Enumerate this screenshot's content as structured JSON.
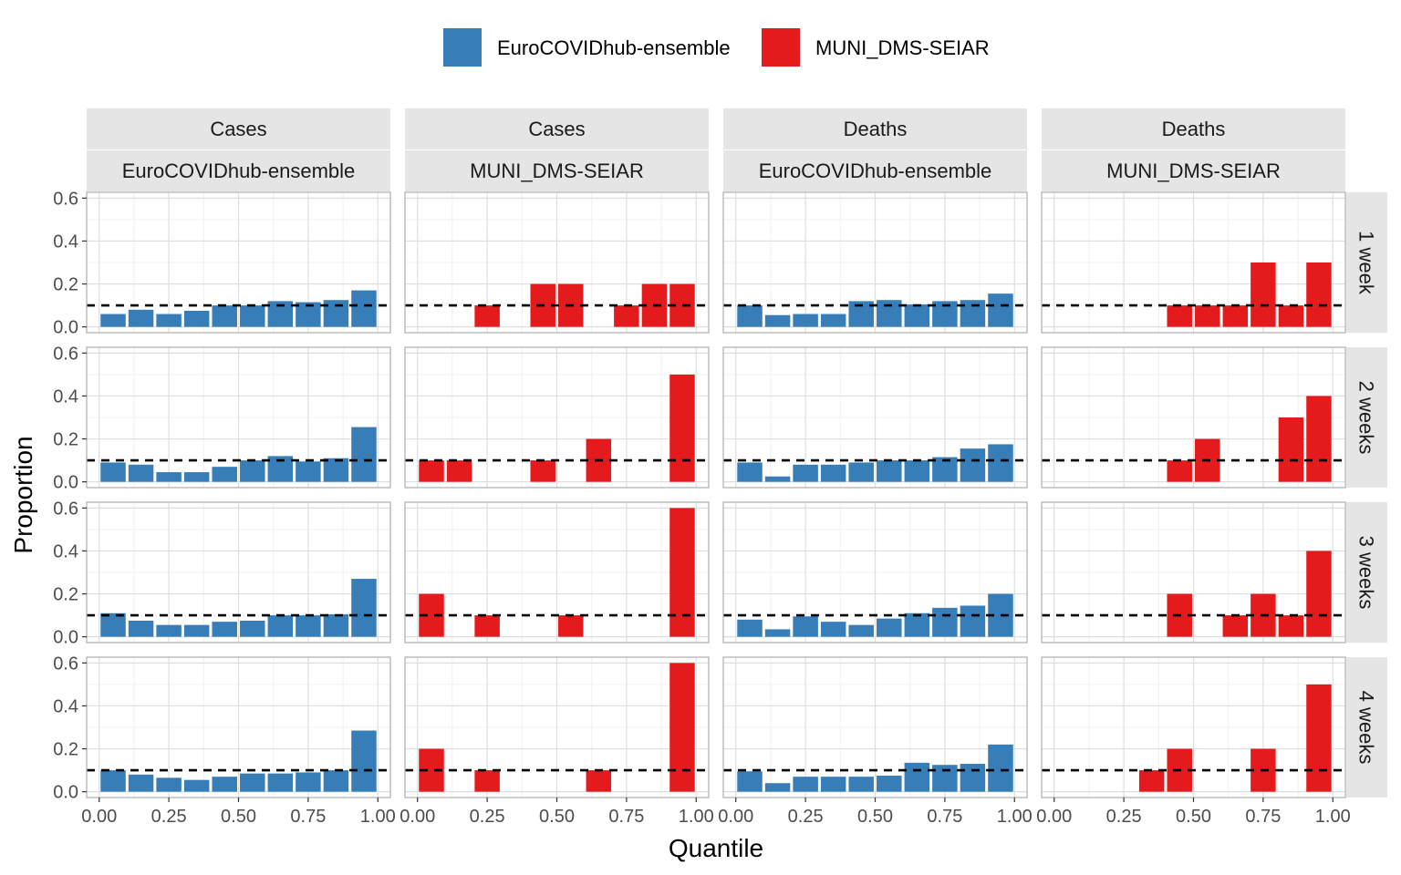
{
  "chart_data": {
    "type": "bar",
    "xlabel": "Quantile",
    "ylabel": "Proportion",
    "xlim": [
      0,
      1
    ],
    "ylim": [
      0,
      0.6
    ],
    "x_ticks": [
      0,
      0.25,
      0.5,
      0.75,
      1.0
    ],
    "x_tick_labels": [
      "0.00",
      "0.25",
      "0.50",
      "0.75",
      "1.00"
    ],
    "y_ticks": [
      0,
      0.2,
      0.4,
      0.6
    ],
    "y_tick_labels": [
      "0.0",
      "0.2",
      "0.4",
      "0.6"
    ],
    "reference_line": 0.1,
    "grid": true,
    "legend_position": "top",
    "bins": [
      0.05,
      0.15,
      0.25,
      0.35,
      0.45,
      0.55,
      0.65,
      0.75,
      0.85,
      0.95
    ],
    "models": [
      {
        "name": "EuroCOVIDhub-ensemble",
        "color": "#377EB8"
      },
      {
        "name": "MUNI_DMS-SEIAR",
        "color": "#E41A1C"
      }
    ],
    "columns": [
      {
        "target": "Cases",
        "model": "EuroCOVIDhub-ensemble"
      },
      {
        "target": "Cases",
        "model": "MUNI_DMS-SEIAR"
      },
      {
        "target": "Deaths",
        "model": "EuroCOVIDhub-ensemble"
      },
      {
        "target": "Deaths",
        "model": "MUNI_DMS-SEIAR"
      }
    ],
    "rows": [
      "1 week",
      "2 weeks",
      "3 weeks",
      "4 weeks"
    ],
    "values": [
      [
        [
          0.06,
          0.08,
          0.06,
          0.075,
          0.1,
          0.1,
          0.12,
          0.115,
          0.125,
          0.17
        ],
        [
          0,
          0,
          0.1,
          0,
          0.2,
          0.2,
          0,
          0.1,
          0.2,
          0.2
        ],
        [
          0.1,
          0.055,
          0.06,
          0.06,
          0.12,
          0.125,
          0.105,
          0.12,
          0.125,
          0.155
        ],
        [
          0,
          0,
          0,
          0,
          0.1,
          0.1,
          0.1,
          0.3,
          0.1,
          0.3
        ]
      ],
      [
        [
          0.09,
          0.08,
          0.045,
          0.045,
          0.07,
          0.1,
          0.12,
          0.095,
          0.11,
          0.255
        ],
        [
          0.1,
          0.1,
          0,
          0,
          0.1,
          0,
          0.2,
          0,
          0,
          0.5
        ],
        [
          0.09,
          0.025,
          0.08,
          0.08,
          0.09,
          0.1,
          0.1,
          0.115,
          0.155,
          0.175
        ],
        [
          0,
          0,
          0,
          0,
          0.1,
          0.2,
          0,
          0,
          0.3,
          0.4
        ]
      ],
      [
        [
          0.11,
          0.075,
          0.055,
          0.055,
          0.07,
          0.075,
          0.1,
          0.1,
          0.105,
          0.27
        ],
        [
          0.2,
          0,
          0.1,
          0,
          0,
          0.1,
          0,
          0,
          0,
          0.6
        ],
        [
          0.08,
          0.035,
          0.095,
          0.07,
          0.055,
          0.085,
          0.11,
          0.135,
          0.145,
          0.2
        ],
        [
          0,
          0,
          0,
          0,
          0.2,
          0,
          0.1,
          0.2,
          0.1,
          0.4
        ]
      ],
      [
        [
          0.1,
          0.08,
          0.065,
          0.055,
          0.07,
          0.085,
          0.085,
          0.09,
          0.1,
          0.285
        ],
        [
          0.2,
          0,
          0.1,
          0,
          0,
          0,
          0.1,
          0,
          0,
          0.6
        ],
        [
          0.095,
          0.04,
          0.07,
          0.07,
          0.07,
          0.075,
          0.135,
          0.125,
          0.13,
          0.22
        ],
        [
          0,
          0,
          0,
          0.1,
          0.2,
          0,
          0,
          0.2,
          0,
          0.5
        ]
      ]
    ]
  }
}
